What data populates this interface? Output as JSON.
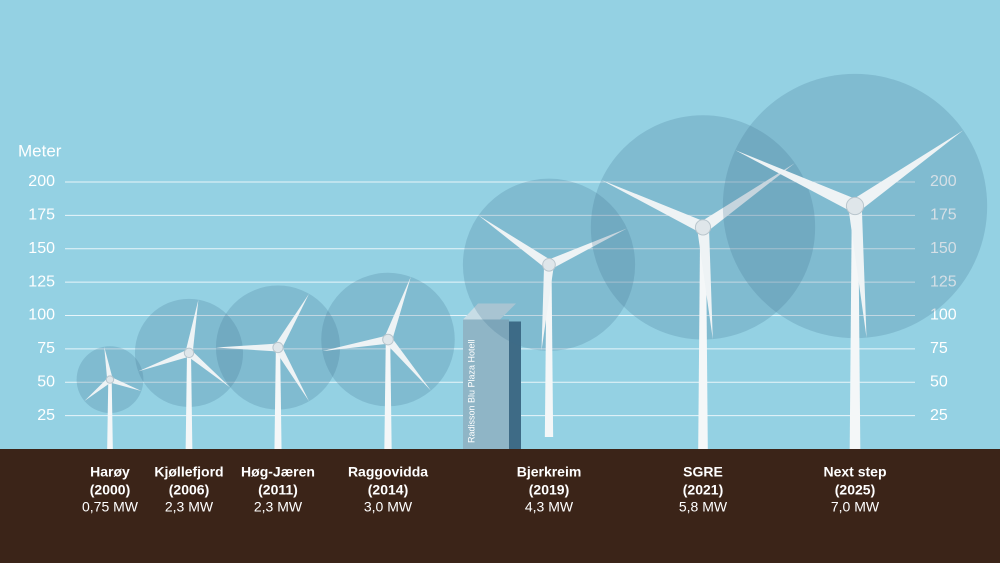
{
  "chart_data": {
    "type": "turbine",
    "y_label": "Meter",
    "ylim": [
      0,
      200
    ],
    "yticks": [
      25,
      50,
      75,
      100,
      125,
      150,
      175,
      200
    ],
    "grid": true,
    "categories": [
      "Harøy",
      "Kjøllefjord",
      "Høg-Jæren",
      "Raggovidda",
      "Bjerkreim",
      "SGRE",
      "Next step"
    ],
    "years": [
      "(2000)",
      "(2006)",
      "(2011)",
      "(2014)",
      "(2019)",
      "(2021)",
      "(2025)"
    ],
    "power_labels": [
      "0,75 MW",
      "2,3 MW",
      "2,3 MW",
      "3,0 MW",
      "4,3 MW",
      "5,8 MW",
      "7,0 MW"
    ],
    "hub_height": [
      52,
      72,
      76,
      82,
      138,
      166,
      182
    ],
    "rotor_diameter": [
      50,
      81,
      93,
      100,
      129,
      168,
      198
    ],
    "building": {
      "label": "Radisson Blu Plaza Hotell",
      "height": 109
    }
  }
}
